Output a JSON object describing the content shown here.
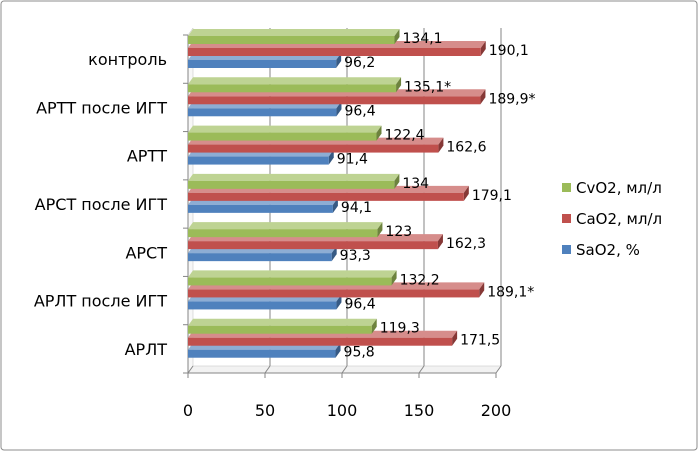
{
  "chart_data": {
    "type": "bar",
    "orientation": "horizontal",
    "style": "3d",
    "categories": [
      "АРЛТ",
      "АРЛТ после ИГТ",
      "АРСТ",
      "АРСТ после ИГТ",
      "АРТТ",
      "АРТТ после ИГТ",
      "контроль"
    ],
    "series": [
      {
        "name": "SaO2, %",
        "color": "#4f81bd",
        "values": [
          95.8,
          96.4,
          93.3,
          94.1,
          91.4,
          96.4,
          96.2
        ],
        "labels": [
          "95,8",
          "96,4",
          "93,3",
          "94,1",
          "91,4",
          "96,4",
          "96,2"
        ]
      },
      {
        "name": "CaO2, мл/л",
        "color": "#c0504d",
        "values": [
          171.5,
          189.1,
          162.3,
          179.1,
          162.6,
          189.9,
          190.1
        ],
        "labels": [
          "171,5",
          "189,1*",
          "162,3",
          "179,1",
          "162,6",
          "189,9*",
          "190,1"
        ]
      },
      {
        "name": "CvO2, мл/л",
        "color": "#9bbb59",
        "values": [
          119.3,
          132.2,
          123,
          134,
          122.4,
          135.1,
          134.1
        ],
        "labels": [
          "119,3",
          "132,2",
          "123",
          "134",
          "122,4",
          "135,1*",
          "134,1"
        ]
      }
    ],
    "xlim": [
      0,
      200
    ],
    "xticks": [
      0,
      50,
      100,
      150,
      200
    ],
    "legend": "right",
    "grid": true
  }
}
